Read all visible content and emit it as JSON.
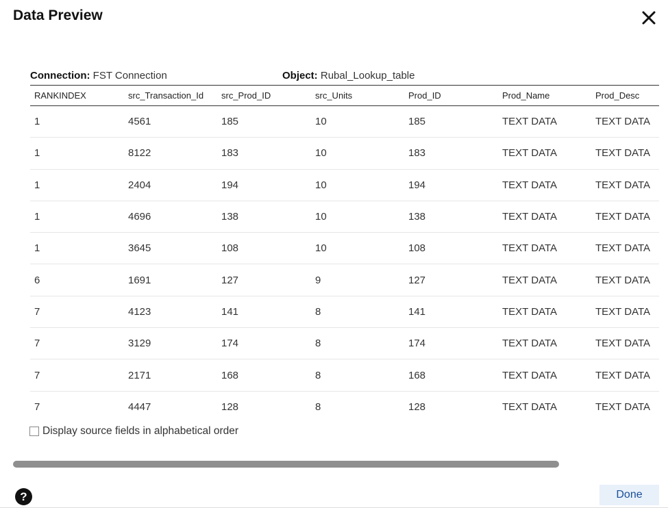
{
  "dialog": {
    "title": "Data Preview",
    "close_icon": "close-icon"
  },
  "meta": {
    "connection_label": "Connection:",
    "connection_value": "FST Connection",
    "object_label": "Object:",
    "object_value": "Rubal_Lookup_table"
  },
  "table": {
    "columns": [
      "RANKINDEX",
      "src_Transaction_Id",
      "src_Prod_ID",
      "src_Units",
      "Prod_ID",
      "Prod_Name",
      "Prod_Desc"
    ],
    "rows": [
      [
        "1",
        "4561",
        "185",
        "10",
        "185",
        "TEXT DATA",
        "TEXT DATA"
      ],
      [
        "1",
        "8122",
        "183",
        "10",
        "183",
        "TEXT DATA",
        "TEXT DATA"
      ],
      [
        "1",
        "2404",
        "194",
        "10",
        "194",
        "TEXT DATA",
        "TEXT DATA"
      ],
      [
        "1",
        "4696",
        "138",
        "10",
        "138",
        "TEXT DATA",
        "TEXT DATA"
      ],
      [
        "1",
        "3645",
        "108",
        "10",
        "108",
        "TEXT DATA",
        "TEXT DATA"
      ],
      [
        "6",
        "1691",
        "127",
        "9",
        "127",
        "TEXT DATA",
        "TEXT DATA"
      ],
      [
        "7",
        "4123",
        "141",
        "8",
        "141",
        "TEXT DATA",
        "TEXT DATA"
      ],
      [
        "7",
        "3129",
        "174",
        "8",
        "174",
        "TEXT DATA",
        "TEXT DATA"
      ],
      [
        "7",
        "2171",
        "168",
        "8",
        "168",
        "TEXT DATA",
        "TEXT DATA"
      ],
      [
        "7",
        "4447",
        "128",
        "8",
        "128",
        "TEXT DATA",
        "TEXT DATA"
      ]
    ]
  },
  "options": {
    "alphabetical_label": "Display source fields in alphabetical order",
    "alphabetical_checked": false
  },
  "footer": {
    "help_icon": "help-icon",
    "help_glyph": "?",
    "done_label": "Done"
  },
  "colors": {
    "done_bg": "#e8f0fa",
    "done_text": "#1a4f99",
    "scrollbar": "#8f8f8f"
  }
}
